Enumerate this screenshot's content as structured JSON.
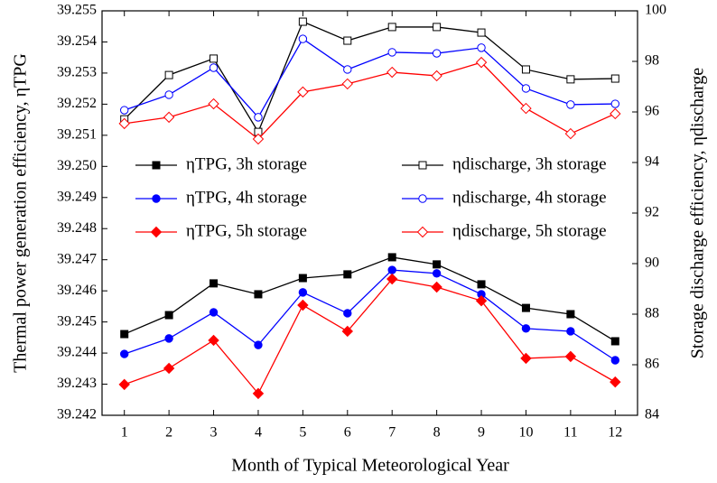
{
  "chart_data": {
    "type": "line",
    "x_label": "Month of Typical Meteorological Year",
    "y_label": "Thermal power generation efficiency, ηTPG",
    "y2_label": "Storage discharge efficiency, ηdischarge",
    "x": [
      1,
      2,
      3,
      4,
      5,
      6,
      7,
      8,
      9,
      10,
      11,
      12
    ],
    "xlim": [
      0.5,
      12.5
    ],
    "xticks": [
      1,
      2,
      3,
      4,
      5,
      6,
      7,
      8,
      9,
      10,
      11,
      12
    ],
    "ylim": [
      39.242,
      39.255
    ],
    "yticks": [
      39.242,
      39.243,
      39.244,
      39.245,
      39.246,
      39.247,
      39.248,
      39.249,
      {
        "value": 39.25,
        "label": "39.250"
      },
      39.251,
      39.252,
      39.253,
      39.254,
      39.255
    ],
    "y2lim": [
      84,
      100
    ],
    "y2ticks": [
      84,
      86,
      88,
      90,
      92,
      94,
      96,
      98,
      100
    ],
    "series": [
      {
        "name": "ηTPG, 3h storage",
        "color": "#000000",
        "marker": "square",
        "filled": true,
        "values": [
          39.24461,
          39.24522,
          39.24624,
          39.24589,
          39.24641,
          39.24653,
          39.24708,
          39.24685,
          39.24621,
          39.24545,
          39.24525,
          39.24438
        ]
      },
      {
        "name": "ηdischarge, 3h storage",
        "color": "#000000",
        "marker": "square",
        "filled": false,
        "axis": "y2",
        "values": [
          95.71,
          97.46,
          98.11,
          95.21,
          99.57,
          98.82,
          99.36,
          99.36,
          99.14,
          97.68,
          97.29,
          97.32
        ]
      },
      {
        "name": "ηTPG, 4h storage",
        "color": "#0000ff",
        "marker": "circle",
        "filled": true,
        "values": [
          39.24397,
          39.24447,
          39.24531,
          39.24426,
          39.24595,
          39.24528,
          39.24667,
          39.24656,
          39.24589,
          39.24479,
          39.2447,
          39.24377
        ]
      },
      {
        "name": "ηdischarge, 4h storage",
        "color": "#0000ff",
        "marker": "circle",
        "filled": false,
        "axis": "y2",
        "values": [
          96.07,
          96.68,
          97.75,
          95.79,
          98.89,
          97.68,
          98.36,
          98.32,
          98.54,
          96.93,
          96.29,
          96.32
        ]
      },
      {
        "name": "ηTPG, 5h storage",
        "color": "#ff0000",
        "marker": "diamond",
        "filled": true,
        "values": [
          39.24299,
          39.24351,
          39.24441,
          39.2427,
          39.24554,
          39.2447,
          39.24638,
          39.24612,
          39.24568,
          39.24383,
          39.24389,
          39.24307
        ]
      },
      {
        "name": "ηdischarge, 5h storage",
        "color": "#ff0000",
        "marker": "diamond",
        "filled": false,
        "axis": "y2",
        "values": [
          95.54,
          95.79,
          96.32,
          94.93,
          96.79,
          97.11,
          97.57,
          97.43,
          97.96,
          96.14,
          95.14,
          95.93
        ]
      }
    ]
  }
}
